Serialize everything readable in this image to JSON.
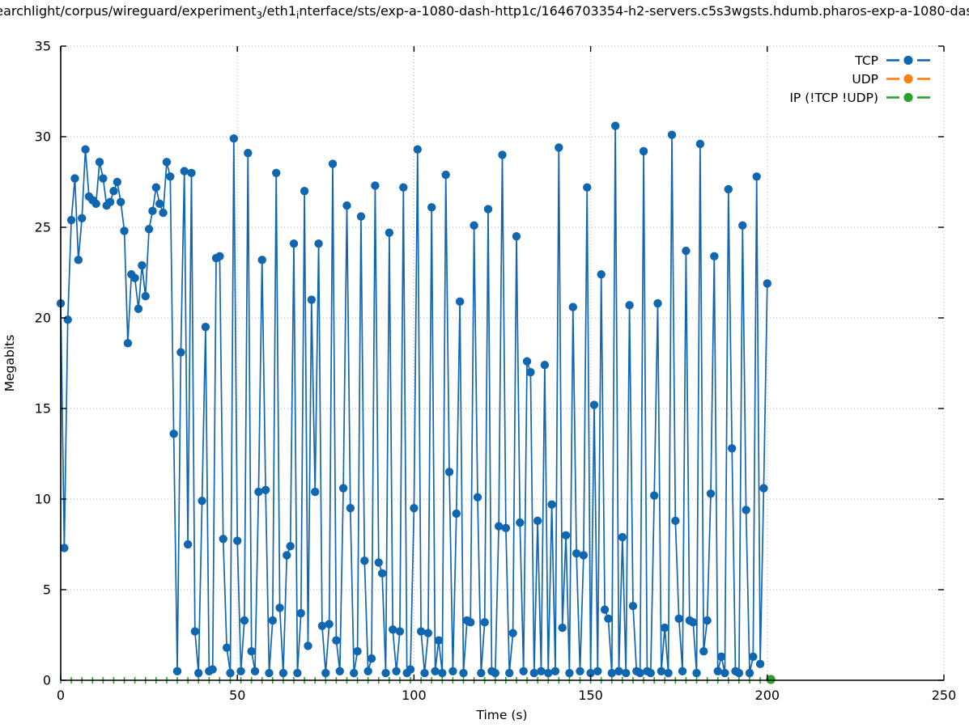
{
  "title": "earchlight/corpus/wireguard/experiment₃/eth1ᵢnterface/sts/exp-a-1080-dash-http1c/1646703354-h2-servers.c5s3wgsts.hdumb.pharos-exp-a-1080-das",
  "title_parts": [
    {
      "t": "earchlight/corpus/wireguard/experiment"
    },
    {
      "t": "3",
      "sub": true
    },
    {
      "t": "/eth1"
    },
    {
      "t": "i",
      "sub": true
    },
    {
      "t": "nterface/sts/exp-a-1080-dash-http1c/1646703354-h2-servers.c5s3wgsts.hdumb.pharos-exp-a-1080-das"
    }
  ],
  "legend": {
    "position": "top-right-inside",
    "items": [
      {
        "label": "TCP",
        "color": "#1166b0"
      },
      {
        "label": "UDP",
        "color": "#ff7f0e"
      },
      {
        "label": "IP (!TCP  !UDP)",
        "color": "#2ca02c"
      }
    ]
  },
  "colors": {
    "tcp_blue": "#1166b0",
    "udp_orange": "#ff7f0e",
    "ip_green": "#2ca02c",
    "grid_gray": "#b5b5b5",
    "axis_black": "#000000"
  },
  "chart_data": {
    "type": "line",
    "title": "earchlight/corpus/wireguard/experiment₃/eth1ᵢnterface/sts/exp-a-1080-dash-http1c/1646703354-h2-servers.c5s3wgsts.hdumb.pharos-exp-a-1080-das",
    "xlabel": "Time (s)",
    "ylabel": "Megabits",
    "xlim": [
      0,
      250
    ],
    "ylim": [
      0,
      35
    ],
    "xticks": [
      0,
      50,
      100,
      150,
      200,
      250
    ],
    "yticks": [
      0,
      5,
      10,
      15,
      20,
      25,
      30,
      35
    ],
    "grid": true,
    "legend_position": "top-right",
    "series": [
      {
        "name": "TCP",
        "color": "#1166b0",
        "marker": "filled-circle",
        "x_start": 0,
        "x_step": 1,
        "values": [
          20.8,
          7.3,
          19.9,
          25.4,
          27.7,
          23.2,
          25.5,
          29.3,
          26.7,
          26.5,
          26.3,
          28.6,
          27.7,
          26.2,
          26.4,
          27.0,
          27.5,
          26.4,
          24.8,
          18.6,
          22.4,
          22.2,
          20.5,
          22.9,
          21.2,
          24.9,
          25.9,
          27.2,
          26.3,
          25.8,
          28.6,
          27.8,
          13.6,
          0.5,
          18.1,
          28.1,
          7.5,
          28.0,
          2.7,
          0.4,
          9.9,
          19.5,
          0.5,
          0.6,
          23.3,
          23.4,
          7.8,
          1.8,
          0.4,
          29.9,
          7.7,
          0.5,
          3.3,
          29.1,
          1.6,
          0.5,
          10.4,
          23.2,
          10.5,
          0.4,
          3.3,
          28.0,
          4.0,
          0.4,
          6.9,
          7.4,
          24.1,
          0.4,
          3.7,
          27.0,
          1.9,
          21.0,
          10.4,
          24.1,
          3.0,
          0.4,
          3.1,
          28.5,
          2.2,
          0.5,
          10.6,
          26.2,
          9.5,
          0.4,
          1.6,
          25.6,
          6.6,
          0.5,
          1.2,
          27.3,
          6.5,
          5.9,
          0.4,
          24.7,
          2.8,
          0.5,
          2.7,
          27.2,
          0.4,
          0.6,
          9.5,
          29.3,
          2.7,
          0.4,
          2.6,
          26.1,
          0.5,
          2.2,
          0.4,
          27.9,
          11.5,
          0.5,
          9.2,
          20.9,
          0.4,
          3.3,
          3.2,
          25.1,
          10.1,
          0.4,
          3.2,
          26.0,
          0.5,
          0.4,
          8.5,
          29.0,
          8.4,
          0.4,
          2.6,
          24.5,
          8.7,
          0.5,
          17.6,
          17.0,
          0.4,
          8.8,
          0.5,
          17.4,
          0.4,
          9.7,
          0.5,
          29.4,
          2.9,
          8.0,
          0.4,
          20.6,
          7.0,
          0.5,
          6.9,
          27.2,
          0.4,
          15.2,
          0.5,
          22.4,
          3.9,
          3.4,
          0.4,
          30.6,
          0.5,
          7.9,
          0.4,
          20.7,
          4.1,
          0.5,
          0.4,
          29.2,
          0.5,
          0.4,
          10.2,
          20.8,
          0.5,
          2.9,
          0.4,
          30.1,
          8.8,
          3.4,
          0.5,
          23.7,
          3.3,
          3.2,
          0.4,
          29.6,
          1.6,
          3.3,
          10.3,
          23.4,
          0.5,
          1.3,
          0.4,
          27.1,
          12.8,
          0.5,
          0.4,
          25.1,
          9.4,
          0.4,
          1.3,
          27.8,
          0.9,
          10.6,
          21.9
        ]
      },
      {
        "name": "UDP",
        "color": "#ff7f0e",
        "marker": "filled-circle",
        "values": [],
        "note": "no visible data points in plot (≈0 throughout, hidden on axis)"
      },
      {
        "name": "IP (!TCP  !UDP)",
        "color": "#2ca02c",
        "marker": "filled-circle",
        "note": "≈0 along the whole x-axis; small green marks on the axis every ~3 s from 0 to ~198, one full point at the end",
        "axis_marks_start": 0,
        "axis_marks_end": 198,
        "axis_marks_step": 3,
        "points": [
          [
            201,
            0
          ]
        ]
      }
    ]
  }
}
